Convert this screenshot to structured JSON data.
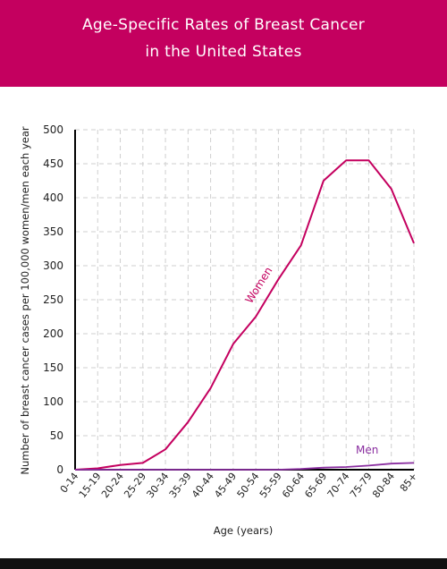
{
  "header": {
    "title_line1": "Age-Specific Rates of Breast Cancer",
    "title_line2": "in the United States",
    "bg_color": "#c4005f"
  },
  "chart_data": {
    "type": "line",
    "title": "Age-Specific Rates of Breast Cancer in the United States",
    "xlabel": "Age (years)",
    "ylabel": "Number of breast cancer cases per 100,000 women/men each year",
    "categories": [
      "0-14",
      "15-19",
      "20-24",
      "25-29",
      "30-34",
      "35-39",
      "40-44",
      "45-49",
      "50-54",
      "55-59",
      "60-64",
      "65-69",
      "70-74",
      "75-79",
      "80-84",
      "85+"
    ],
    "yticks": [
      0,
      50,
      100,
      150,
      200,
      250,
      300,
      350,
      400,
      450,
      500
    ],
    "ylim": [
      0,
      500
    ],
    "grid": true,
    "series": [
      {
        "name": "Women",
        "color": "#c4005f",
        "x": [
          "0-14",
          "15-19",
          "20-24",
          "25-29",
          "30-34",
          "35-39",
          "40-44",
          "45-49",
          "50-54",
          "55-59",
          "60-64",
          "65-69",
          "70-74",
          "75-79",
          "80-84",
          "85+"
        ],
        "values": [
          0,
          2,
          7,
          10,
          30,
          70,
          120,
          185,
          225,
          280,
          330,
          425,
          455,
          455,
          413,
          333
        ]
      },
      {
        "name": "Men",
        "color": "#8a2ea0",
        "x": [
          "0-14",
          "15-19",
          "20-24",
          "25-29",
          "30-34",
          "35-39",
          "40-44",
          "45-49",
          "50-54",
          "55-59",
          "60-64",
          "65-69",
          "70-74",
          "75-79",
          "80-84",
          "85+"
        ],
        "values": [
          0,
          0,
          0,
          0,
          0,
          0,
          0,
          0,
          0,
          0,
          1,
          3,
          4,
          6,
          9,
          10
        ]
      }
    ]
  }
}
